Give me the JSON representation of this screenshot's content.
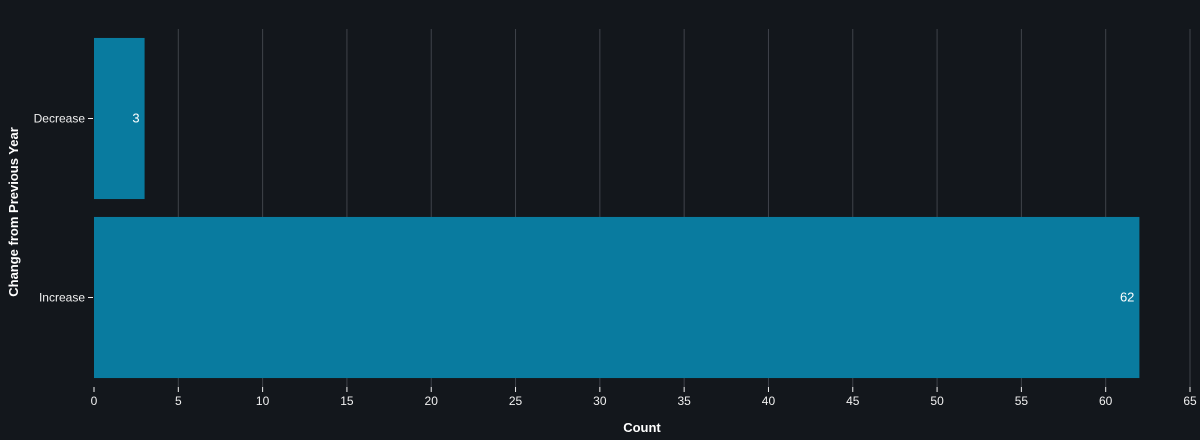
{
  "chart_data": {
    "type": "bar",
    "orientation": "horizontal",
    "title": "",
    "xlabel": "Count",
    "ylabel": "Change from Previous Year",
    "categories": [
      "Decrease",
      "Increase"
    ],
    "values": [
      3,
      62
    ],
    "data_labels": [
      "3",
      "62"
    ],
    "xlim": [
      0,
      65
    ],
    "xticks": [
      0,
      5,
      10,
      15,
      20,
      25,
      30,
      35,
      40,
      45,
      50,
      55,
      60,
      65
    ],
    "grid": "vertical",
    "colors": {
      "background": "#13171c",
      "bar": "#097b9f",
      "grid": "#3f434a",
      "text": "#f0f0f0"
    }
  }
}
